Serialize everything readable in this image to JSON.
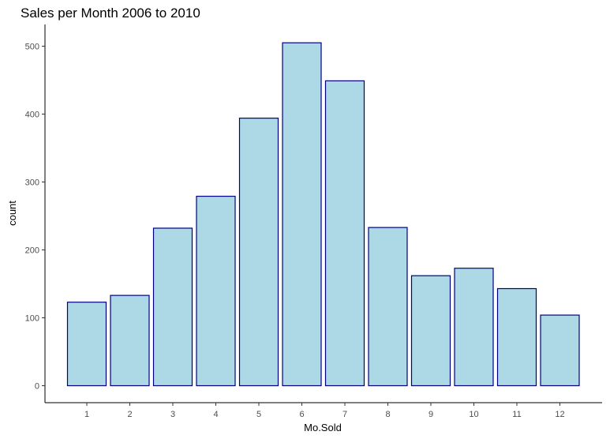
{
  "chart_data": {
    "type": "bar",
    "title": "Sales per Month 2006 to 2010",
    "xlabel": "Mo.Sold",
    "ylabel": "count",
    "categories": [
      "1",
      "2",
      "3",
      "4",
      "5",
      "6",
      "7",
      "8",
      "9",
      "10",
      "11",
      "12"
    ],
    "values": [
      123,
      133,
      232,
      279,
      394,
      505,
      449,
      233,
      162,
      173,
      143,
      104
    ],
    "ylim": [
      0,
      530
    ],
    "yticks": [
      "0",
      "100",
      "200",
      "300",
      "400",
      "500"
    ],
    "grid": false,
    "legend": "none",
    "colors": {
      "fill": "#add8e6",
      "outline": "#000080"
    }
  }
}
